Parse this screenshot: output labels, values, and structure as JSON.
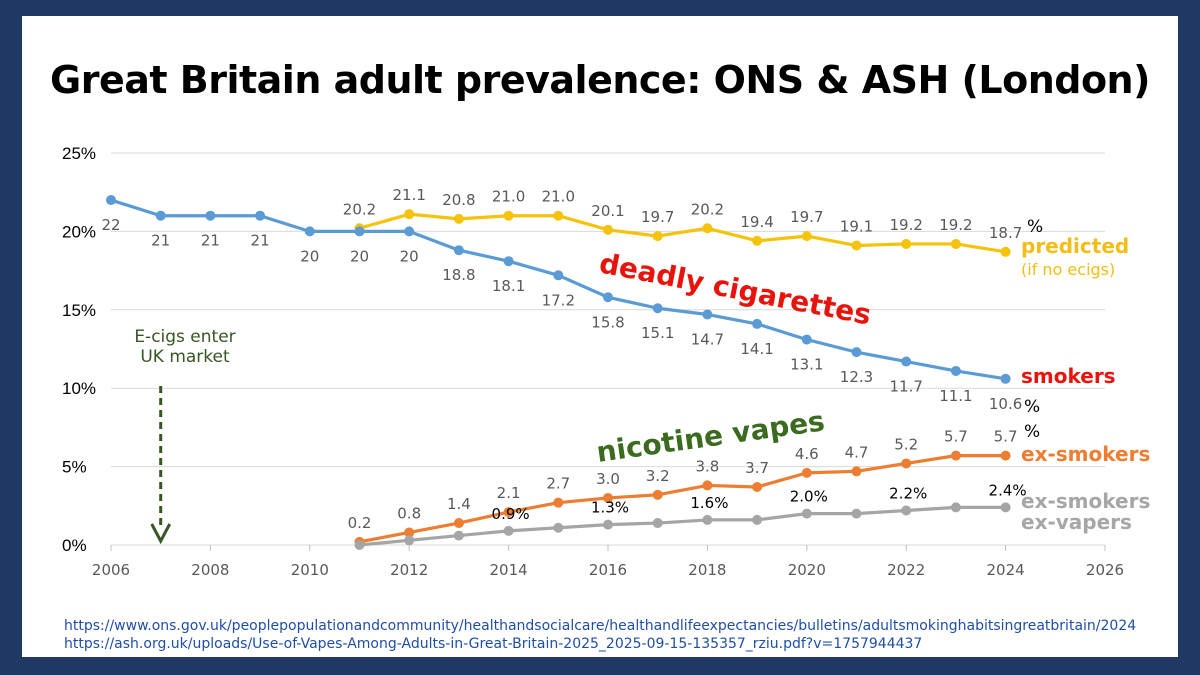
{
  "title": "Great Britain adult prevalence:  ONS & ASH (London)",
  "sources": [
    "https://www.ons.gov.uk/peoplepopulationandcommunity/healthandsocialcare/healthandlifeexpectancies/bulletins/adultsmokinghabitsingreatbritain/2024",
    "https://ash.org.uk/uploads/Use-of-Vapes-Among-Adults-in-Great-Britain-2025_2025-09-15-135357_rziu.pdf?v=1757944437"
  ],
  "chart_data": {
    "type": "line",
    "xlim": [
      2006,
      2026
    ],
    "ylim": [
      0,
      25
    ],
    "x_ticks": [
      "2006",
      "2008",
      "2010",
      "2012",
      "2014",
      "2016",
      "2018",
      "2020",
      "2022",
      "2024",
      "2026"
    ],
    "y_ticks": [
      "0%",
      "5%",
      "10%",
      "15%",
      "20%",
      "25%"
    ],
    "grid": true,
    "series": [
      {
        "key": "predicted",
        "name": "predicted",
        "color": "#f5c20c",
        "x": [
          2011,
          2012,
          2013,
          2014,
          2015,
          2016,
          2017,
          2018,
          2019,
          2020,
          2021,
          2022,
          2023,
          2024
        ],
        "values": [
          20.2,
          21.1,
          20.8,
          21.0,
          21.0,
          20.1,
          19.7,
          20.2,
          19.4,
          19.7,
          19.1,
          19.2,
          19.2,
          18.7
        ],
        "labels": [
          "20.2",
          "21.1",
          "20.8",
          "21.0",
          "21.0",
          "20.1",
          "19.7",
          "20.2",
          "19.4",
          "19.7",
          "19.1",
          "19.2",
          "19.2",
          "18.7"
        ]
      },
      {
        "key": "smokers",
        "name": "smokers",
        "color": "#5b9bd5",
        "x": [
          2006,
          2007,
          2008,
          2009,
          2010,
          2011,
          2012,
          2013,
          2014,
          2015,
          2016,
          2017,
          2018,
          2019,
          2020,
          2021,
          2022,
          2023,
          2024
        ],
        "values": [
          22,
          21,
          21,
          21,
          20,
          20,
          20,
          18.8,
          18.1,
          17.2,
          15.8,
          15.1,
          14.7,
          14.1,
          13.1,
          12.3,
          11.7,
          11.1,
          10.6
        ],
        "labels": [
          "22",
          "21",
          "21",
          "21",
          "20",
          "20",
          "20",
          "18.8",
          "18.1",
          "17.2",
          "15.8",
          "15.1",
          "14.7",
          "14.1",
          "13.1",
          "12.3",
          "11.7",
          "11.1",
          "10.6"
        ]
      },
      {
        "key": "ex_smokers",
        "name": "ex-smokers",
        "color": "#ed7d31",
        "x": [
          2011,
          2012,
          2013,
          2014,
          2015,
          2016,
          2017,
          2018,
          2019,
          2020,
          2021,
          2022,
          2023,
          2024
        ],
        "values": [
          0.2,
          0.8,
          1.4,
          2.1,
          2.7,
          3.0,
          3.2,
          3.8,
          3.7,
          4.6,
          4.7,
          5.2,
          5.7,
          5.7
        ],
        "labels": [
          "0.2",
          "0.8",
          "1.4",
          "2.1",
          "2.7",
          "3.0",
          "3.2",
          "3.8",
          "3.7",
          "4.6",
          "4.7",
          "5.2",
          "5.7",
          "5.7"
        ]
      },
      {
        "key": "ex_vapers",
        "name": "ex-smokers ex-vapers",
        "color": "#a5a5a5",
        "x": [
          2011,
          2012,
          2013,
          2014,
          2015,
          2016,
          2017,
          2018,
          2019,
          2020,
          2021,
          2022,
          2023,
          2024
        ],
        "values": [
          0.0,
          0.3,
          0.6,
          0.9,
          1.1,
          1.3,
          1.4,
          1.6,
          1.6,
          2.0,
          2.0,
          2.2,
          2.4,
          2.4
        ],
        "labelled": [
          {
            "x": 2014,
            "text": "0.9%"
          },
          {
            "x": 2016,
            "text": "1.3%"
          },
          {
            "x": 2018,
            "text": "1.6%"
          },
          {
            "x": 2020,
            "text": "2.0%"
          },
          {
            "x": 2022,
            "text": "2.2%"
          },
          {
            "x": 2024,
            "text": "2.4%"
          }
        ]
      }
    ],
    "annotations": {
      "deadly": "deadly cigarettes",
      "vapes": "nicotine vapes",
      "ecigs_line1": "E-cigs enter",
      "ecigs_line2": "UK market",
      "ecigs_year": 2007,
      "predicted_legend": "predicted",
      "predicted_sub": "(if no ecigs)",
      "smokers_legend": "smokers",
      "ex_smokers_legend": "ex-smokers",
      "ex_vapers_line1": "ex-smokers",
      "ex_vapers_line2": "ex-vapers",
      "pct": "%",
      "colors": {
        "deadly": "#e8140c",
        "vapes": "#3a6b1e",
        "ecigs": "#375623",
        "predicted": "#f0be16",
        "smokers": "#e8140c",
        "ex_smokers": "#ed7d31",
        "ex_vapers": "#a6a6a6"
      }
    }
  }
}
